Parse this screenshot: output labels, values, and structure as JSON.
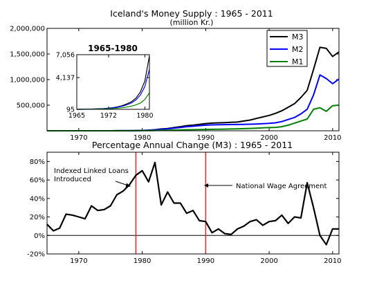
{
  "chart_data": [
    {
      "type": "line",
      "title": "Iceland's Money Supply : 1965 - 2011",
      "subtitle": "(million Kr.)",
      "xlim": [
        1965,
        2011
      ],
      "ylim": [
        0,
        2000000
      ],
      "x_ticks": [
        "1970",
        "1980",
        "1990",
        "2000",
        "2010"
      ],
      "y_ticks": [
        "500,000",
        "1,000,000",
        "1,500,000",
        "2,000,000"
      ],
      "legend_position": "top-right",
      "colors": {
        "M3": "#000000",
        "M2": "#0000ff",
        "M1": "#008000"
      },
      "x": [
        1965,
        1966,
        1967,
        1968,
        1969,
        1970,
        1971,
        1972,
        1973,
        1974,
        1975,
        1976,
        1977,
        1978,
        1979,
        1980,
        1981,
        1982,
        1983,
        1984,
        1985,
        1986,
        1987,
        1988,
        1989,
        1990,
        1991,
        1992,
        1993,
        1994,
        1995,
        1996,
        1997,
        1998,
        1999,
        2000,
        2001,
        2002,
        2003,
        2004,
        2005,
        2006,
        2007,
        2008,
        2009,
        2010,
        2011
      ],
      "series": [
        {
          "name": "M3",
          "values": [
            0,
            0,
            0,
            0,
            0,
            0,
            0,
            0,
            0,
            0,
            500,
            1000,
            1500,
            2000,
            4000,
            7000,
            12000,
            20000,
            35000,
            45000,
            62000,
            80000,
            100000,
            110000,
            125000,
            140000,
            150000,
            155000,
            160000,
            165000,
            170000,
            190000,
            210000,
            240000,
            270000,
            300000,
            340000,
            390000,
            460000,
            530000,
            650000,
            790000,
            1200000,
            1630000,
            1610000,
            1450000,
            1540000
          ]
        },
        {
          "name": "M2",
          "values": [
            0,
            0,
            0,
            0,
            0,
            0,
            0,
            0,
            0,
            0,
            500,
            900,
            1300,
            1800,
            3500,
            6000,
            10000,
            17000,
            28000,
            36000,
            50000,
            64000,
            80000,
            88000,
            100000,
            110000,
            115000,
            118000,
            120000,
            122000,
            123000,
            125000,
            128000,
            132000,
            138000,
            145000,
            155000,
            180000,
            220000,
            260000,
            330000,
            420000,
            700000,
            1090000,
            1020000,
            920000,
            1010000
          ]
        },
        {
          "name": "M1",
          "values": [
            0,
            0,
            0,
            0,
            0,
            0,
            0,
            0,
            0,
            0,
            300,
            500,
            800,
            1000,
            1500,
            2500,
            4000,
            6000,
            9000,
            11000,
            13000,
            16000,
            20000,
            22000,
            24000,
            26000,
            28000,
            30000,
            32000,
            35000,
            38000,
            42000,
            46000,
            52000,
            58000,
            62000,
            66000,
            80000,
            110000,
            150000,
            190000,
            230000,
            420000,
            450000,
            380000,
            490000,
            500000
          ]
        }
      ]
    },
    {
      "type": "line",
      "title": "1965-1980",
      "xlim": [
        1965,
        1981
      ],
      "ylim": [
        95,
        7056
      ],
      "x_ticks": [
        "1965",
        "1972",
        "1980"
      ],
      "y_ticks": [
        "95",
        "4,137",
        "7,056"
      ],
      "x": [
        1965,
        1966,
        1967,
        1968,
        1969,
        1970,
        1971,
        1972,
        1973,
        1974,
        1975,
        1976,
        1977,
        1978,
        1979,
        1980,
        1981
      ],
      "series": [
        {
          "name": "M3",
          "values": [
            95,
            100,
            110,
            125,
            145,
            170,
            205,
            250,
            310,
            420,
            560,
            780,
            1050,
            1500,
            2300,
            3700,
            6900
          ]
        },
        {
          "name": "M2",
          "values": [
            95,
            98,
            105,
            118,
            135,
            155,
            185,
            225,
            280,
            370,
            490,
            670,
            900,
            1280,
            1900,
            3000,
            5200
          ]
        },
        {
          "name": "M1",
          "values": [
            95,
            96,
            100,
            108,
            118,
            130,
            148,
            170,
            200,
            245,
            300,
            390,
            500,
            650,
            900,
            1350,
            2200
          ]
        }
      ]
    },
    {
      "type": "line",
      "title": "Percentage Annual Change (M3) : 1965 - 2011",
      "xlim": [
        1965,
        2011
      ],
      "ylim": [
        -20,
        90
      ],
      "x_ticks": [
        "1970",
        "1980",
        "1990",
        "2000",
        "2010"
      ],
      "y_ticks": [
        "-20%",
        "0%",
        "20%",
        "40%",
        "60%",
        "80%"
      ],
      "x": [
        1965,
        1966,
        1967,
        1968,
        1969,
        1970,
        1971,
        1972,
        1973,
        1974,
        1975,
        1976,
        1977,
        1978,
        1979,
        1980,
        1981,
        1982,
        1983,
        1984,
        1985,
        1986,
        1987,
        1988,
        1989,
        1990,
        1991,
        1992,
        1993,
        1994,
        1995,
        1996,
        1997,
        1998,
        1999,
        2000,
        2001,
        2002,
        2003,
        2004,
        2005,
        2006,
        2007,
        2008,
        2009,
        2010,
        2011
      ],
      "series": [
        {
          "name": "M3",
          "values": [
            12,
            5,
            8,
            23,
            22,
            20,
            18,
            32,
            27,
            28,
            32,
            44,
            48,
            55,
            65,
            70,
            58,
            79,
            33,
            47,
            35,
            35,
            24,
            27,
            16,
            15,
            3,
            7,
            2,
            1,
            7,
            10,
            15,
            17,
            11,
            15,
            16,
            22,
            13,
            20,
            19,
            57,
            30,
            0,
            -10,
            7,
            7
          ]
        }
      ],
      "annotations": [
        {
          "text_lines": [
            "Indexed Linked Loans",
            "Introduced"
          ],
          "x": 1979
        },
        {
          "text": "National Wage Agreement",
          "x": 1990
        }
      ]
    }
  ]
}
